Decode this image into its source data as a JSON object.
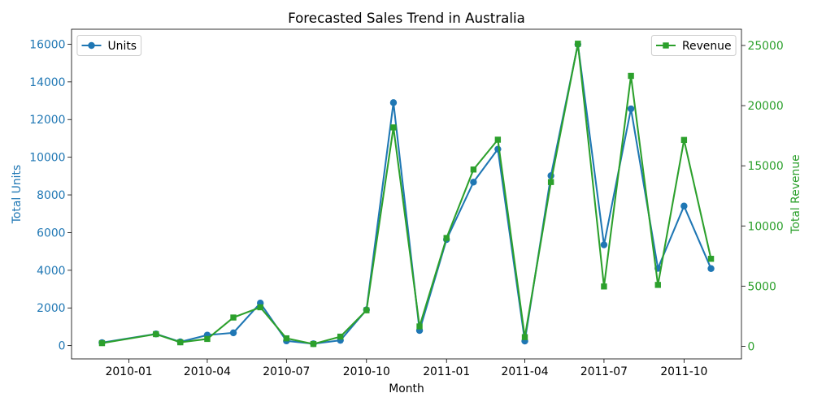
{
  "chart_data": {
    "type": "line",
    "title": "Forecasted Sales Trend in Australia",
    "xlabel": "Month",
    "x": [
      "2009-12-01",
      "2010-02-01",
      "2010-03-01",
      "2010-04-01",
      "2010-05-01",
      "2010-06-01",
      "2010-07-01",
      "2010-08-01",
      "2010-09-01",
      "2010-10-01",
      "2010-11-01",
      "2010-12-01",
      "2011-01-01",
      "2011-02-01",
      "2011-03-01",
      "2011-04-01",
      "2011-05-01",
      "2011-06-01",
      "2011-07-01",
      "2011-08-01",
      "2011-09-01",
      "2011-10-01",
      "2011-11-01"
    ],
    "xlim": [
      "2009-10-27",
      "2011-12-06"
    ],
    "xticks": [
      "2010-01",
      "2010-04",
      "2010-07",
      "2010-10",
      "2011-01",
      "2011-04",
      "2011-07",
      "2011-10"
    ],
    "y_left": {
      "label": "Total Units",
      "color": "#1f77b4",
      "ylim": [
        -705,
        16795
      ],
      "ticks": [
        0,
        2000,
        4000,
        6000,
        8000,
        10000,
        12000,
        14000,
        16000
      ]
    },
    "y_right": {
      "label": "Total Revenue",
      "color": "#2ca02c",
      "ylim": [
        -1050,
        26350
      ],
      "ticks": [
        0,
        5000,
        10000,
        15000,
        20000,
        25000
      ]
    },
    "series": [
      {
        "name": "Units",
        "axis": "left",
        "color": "#1f77b4",
        "marker": "circle",
        "legend": "upper-left",
        "values": [
          160,
          620,
          200,
          560,
          680,
          2260,
          250,
          100,
          280,
          1900,
          12900,
          800,
          5630,
          8680,
          10430,
          240,
          9020,
          15990,
          5350,
          12570,
          4100,
          7410,
          4090
        ]
      },
      {
        "name": "Revenue",
        "axis": "right",
        "color": "#2ca02c",
        "marker": "square",
        "legend": "upper-right",
        "values": [
          260,
          1010,
          330,
          610,
          2390,
          3240,
          660,
          190,
          800,
          2990,
          18190,
          1650,
          9000,
          14690,
          17170,
          760,
          13650,
          25150,
          4970,
          22470,
          5100,
          17150,
          7270
        ]
      }
    ],
    "grid": false
  }
}
